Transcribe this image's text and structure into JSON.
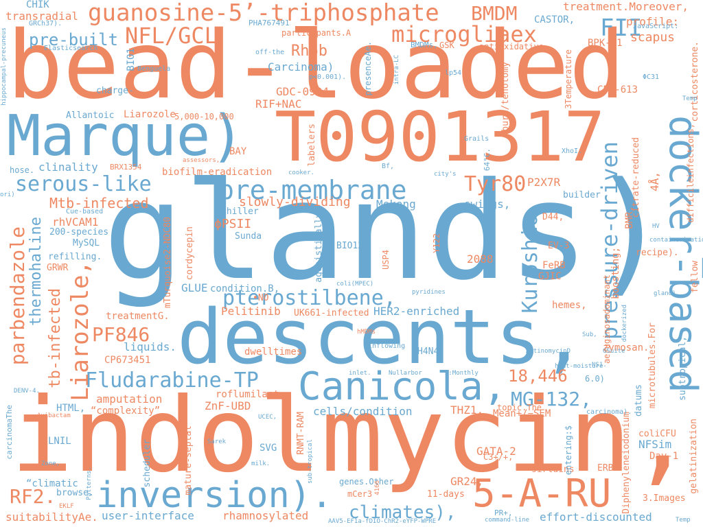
{
  "colors": {
    "orange": "#ee8862",
    "blue": "#69a8d0",
    "background": "#ffffff"
  },
  "words": {
    "bead_loaded": "bead-loaded",
    "glands": "glands).",
    "indolmycin": "indolmycin,",
    "descents": "descents,",
    "t0901317": "T0901317",
    "marque": "Marque)",
    "docker_based": "docker-based",
    "guanosine": "guanosine-5’-triphosphate",
    "inversion": "inversion).",
    "five_a_ru": "5-A-RU",
    "canicola": "Canicola,",
    "pre_membrane": "pre-membrane",
    "microgliaex": "microgliaex",
    "nfl_gcl": "NFL/GCL",
    "pressure_driven": "pressure-driven",
    "bmdm": "BMDM",
    "fii": "FII",
    "pre_built": "pre-built",
    "serous_like": "serous-like",
    "tyr80": "Tyr80",
    "kuroshio": "Kuroshio",
    "mtb_infected": "Mtb-infected",
    "pterostilbene": "pterostilbene,",
    "fludarabine": "Fludarabine-TP",
    "pf846": "PF846",
    "mg132": "MG-132,",
    "eighteen": "18,446",
    "liarozole_big": "Liarozole,",
    "parbendazole": "parbendazole",
    "thermohaline": "thermohaline",
    "tb_infected": "tb-infected",
    "climates": "climates),",
    "rf2": "RF2.",
    "rhob": "Rhob",
    "chik": "CHIK",
    "transradial": "transradial",
    "treatment_moreover": "treatment.Moreover,",
    "castor": "CASTOR,",
    "profile": "profile:",
    "scapus": "scapus",
    "bpk21": "BPK-21",
    "carcinoma_p": "Carcinoma)",
    "gdc0994": "GDC-0994",
    "rif_nac": "RIF+NAC",
    "liarozole_small": "Liarozole",
    "five_thousand": "5,000-10,000",
    "allantoic": "Allantoic",
    "cpi613": "CPI-613",
    "clinality": "clinality",
    "biofilm": "biofilm-eradication",
    "slowly_dividing": "slowly-dividing",
    "mekong": "Mekong",
    "swings": "swings,",
    "p2x7r": "P2X7R",
    "rhvcam1": "rhVCAM1",
    "phi_psii": "ϕPSII",
    "chiller": "chiller",
    "sunda": "Sunda",
    "bio12": "BIO12",
    "d44": "D44,",
    "ev3": "EV-3",
    "n2088": "2088",
    "ferb": "FeRB",
    "gjic": "GJIC",
    "glue": "GLUE",
    "condition_b": "condition.B,",
    "no": "•NO",
    "pelitinib": "Pelitinib",
    "uk661": "UK661-infected",
    "her2": "HER2-enriched",
    "hemes": "hemes,",
    "treatment_g": "treatmentG.",
    "liquids": "liquids.",
    "cp673451": "CP673451",
    "dwelltimes": "dwelltimes",
    "h4n4": "H4N4",
    "zymosan": "zymosan.",
    "amputation": "amputation",
    "complexity": "“complexity”",
    "html": "HTML,",
    "roflumilast": "roflumilast,",
    "znf_ubd": "ZnF-UBD",
    "cells_condition": "cells/condition",
    "thz1": "THZ1,",
    "mean_sem": "Mean+/−SEM",
    "topic_the": "topic.The",
    "svg": "SVG",
    "gata2": "GATA-2",
    "nfsim": "NFSim",
    "day1": "Day-1",
    "colicfu": "coliCFU",
    "gr24": "GR24,",
    "sirtuins": "sirtuins",
    "eleven_days": "11-days",
    "genes_other": "genes.Other",
    "mcer3": "mCer3",
    "three_images": "3.Images",
    "user_interface": "user-interface",
    "rhamnosylated": "rhamnosylated",
    "effort_discounted": "effort-discounted",
    "suitability": "suitabilityAe.",
    "lnil": "LNIL",
    "climatic": "“climatic",
    "browse": "browse.",
    "grwr": "GRWR",
    "refilling": "refilling.",
    "mysql": "MySQL",
    "two_hundred_species": "200-species",
    "cue_based": "Cue-based",
    "builder": "builder",
    "recipe": "recipe).",
    "bay": "BAY",
    "hose": "hose.",
    "brx1354": "BRX1354",
    "cordycepin": "cordycepin",
    "y122": "Y122",
    "usp4": "USP4",
    "agonistically": "agonistically",
    "labelers": "labelers",
    "burn_tenotomy": "burn/tenotomy",
    "citrate_reduced": "citrate-reduced",
    "bmr": "BMR,",
    "boosting": "boosting;",
    "four_a": "4Å,",
    "microtubules": "microtubules.For",
    "datums": "datums",
    "aeruginosadominant": "aeruginosadominant",
    "diphenyleneiodonium": "Diphenyleneiodonium",
    "entering": "entering:$",
    "subtropical": "subtropical,",
    "difficileinfections": "difficileinfections,",
    "fellow": "fellow",
    "gelatinization": "gelatinization",
    "mturquoise": "mTurquoise2-NDC80",
    "mature_septal": "mature-septal",
    "scheduler": "scheduler",
    "rnmt_ram": "RNMT-RAM",
    "three_temperature": "3Temperature",
    "presence_ae": "presenceAe.",
    "bio1": "BIO1",
    "pha767491": "PHA767491",
    "participants_a": "participants.A",
    "antioxidative": "antioxidative.",
    "gsk": "GSK",
    "bmdms": "BMDMs,",
    "p_value": "p<0.001).",
    "off_the": "off-the",
    "elasticsearch": "Elasticsearch",
    "grch37": "GRCh37).",
    "hippocampal": "hippocampal-precuneus",
    "benguela": "Benguela",
    "charge": "charge-",
    "intra_lc": "intra-LC",
    "lp54": "lp54",
    "phi_c31": "ΦC31",
    "javascript": "JavaScript:",
    "corticosterone": "corticosterone.",
    "temp_small": "Temp",
    "grails": "Grails",
    "xhoi": "XhoI.",
    "sixtyfour": "64°C.",
    "assessors": "assessors,",
    "cooker": "cooker.",
    "bf": "Bf,",
    "citys": "city's",
    "ori": "ori)",
    "hv": "HV",
    "containerization": "containerization",
    "coli_mpec": "coli(MPEC)",
    "pyridines": "pyridines",
    "gland": "gland).",
    "dockerized": "dockerized",
    "hmdms": "hMDMs",
    "inflowing": "inflowing",
    "sub": "Sub,",
    "gsuite": "GSuite",
    "actinomycin": "ActinomycinD",
    "ns1": "NS1.",
    "heat_moisture": "heat-moisture",
    "six_zero": "6.0)",
    "inlet": "inlet.",
    "nullarbor": "Nullarbor",
    "three_monthly": "3:Monthly",
    "denv4": "DENV-4.",
    "avibactam": "Avibactam",
    "carcinoma_the": "carcinomaThe",
    "zone": "Zone,",
    "patterns": "Patterns.",
    "sarek": "Sarek",
    "milk": "milk.",
    "ucec": "UCEC,",
    "sub_tropical": "sub-tropical",
    "n4166": "4166",
    "pr_plus": "PR+,",
    "command_line": "command-line",
    "aav5": "AAV5-EF1a-fDIO-ChR2-eYFP-WPRE",
    "eklf": "EKLF",
    "carcinoma_dot": "carcinoma).",
    "c3plus": "C3+/+,",
    "erb": "ERB",
    "temp2": "Temp"
  }
}
